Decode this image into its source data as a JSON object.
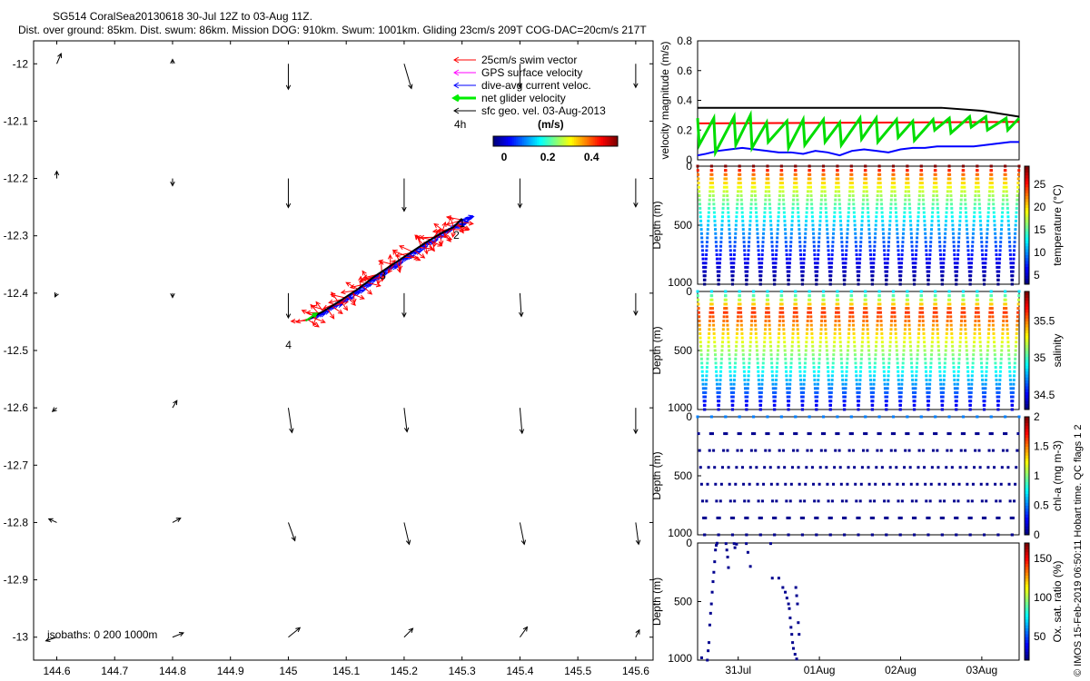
{
  "title_line1": "SG514 CoralSea20130618 30-Jul 12Z to 03-Aug 11Z.",
  "title_line2": "Dist. over ground: 85km. Dist. swum: 86km. Mission DOG: 910km. Swum: 1001km. Gliding 23cm/s 209T COG-DAC=20cm/s 217T",
  "side_credit": "© IMOS 15-Feb-2019 06:50:11 Hobart time. QC flags 1  2",
  "colors": {
    "swim": "#ff0000",
    "gps": "#ff00ff",
    "dac": "#0000ff",
    "net": "#00ee00",
    "sfc": "#000000",
    "jet": [
      "#00008f",
      "#0000ff",
      "#007fff",
      "#00ffff",
      "#7fff7f",
      "#ffff00",
      "#ff7f00",
      "#ff0000",
      "#7f0000"
    ]
  },
  "chart_data": [
    {
      "id": "map",
      "type": "scatter",
      "xlabel": "",
      "ylabel": "",
      "xlim": [
        144.56,
        145.63
      ],
      "ylim": [
        -13.04,
        -11.96
      ],
      "xticks": [
        "144.6",
        "144.7",
        "144.8",
        "144.9",
        "145",
        "145.1",
        "145.2",
        "145.3",
        "145.4",
        "145.5",
        "145.6"
      ],
      "xtick_values": [
        144.6,
        144.7,
        144.8,
        144.9,
        145.0,
        145.1,
        145.2,
        145.3,
        145.4,
        145.5,
        145.6
      ],
      "yticks": [
        "-12",
        "-12.1",
        "-12.2",
        "-12.3",
        "-12.4",
        "-12.5",
        "-12.6",
        "-12.7",
        "-12.8",
        "-12.9",
        "-13"
      ],
      "ytick_values": [
        -12.0,
        -12.1,
        -12.2,
        -12.3,
        -12.4,
        -12.5,
        -12.6,
        -12.7,
        -12.8,
        -12.9,
        -13.0
      ],
      "legend": [
        {
          "label": "25cm/s swim vector",
          "color": "#ff0000",
          "style": "thin"
        },
        {
          "label": "GPS surface velocity",
          "color": "#ff00ff",
          "style": "thin"
        },
        {
          "label": "dive-avg current veloc.",
          "color": "#0000ff",
          "style": "thin"
        },
        {
          "label": "net glider velocity",
          "color": "#00ee00",
          "style": "thick"
        },
        {
          "label": "sfc geo. vel. 03-Aug-2013",
          "color": "#000000",
          "style": "thin"
        }
      ],
      "legend_placement": "top-right",
      "legend_note": "4h",
      "colorbar": {
        "label": "(m/s)",
        "ticks": [
          "0",
          "0.2",
          "0.4"
        ],
        "tick_values": [
          0,
          0.2,
          0.4
        ],
        "range": [
          -0.05,
          0.52
        ]
      },
      "isobaths_label": "isobaths: 0   200  1000m",
      "day_markers": [
        {
          "label": "1",
          "x": 145.295,
          "y": -12.285
        },
        {
          "label": "2",
          "x": 145.285,
          "y": -12.305
        },
        {
          "label": "3",
          "x": 145.158,
          "y": -12.376
        },
        {
          "label": "4",
          "x": 144.995,
          "y": -12.497
        }
      ],
      "track": [
        [
          145.03,
          -12.448
        ],
        [
          145.06,
          -12.432
        ],
        [
          145.09,
          -12.413
        ],
        [
          145.12,
          -12.393
        ],
        [
          145.15,
          -12.37
        ],
        [
          145.18,
          -12.35
        ],
        [
          145.21,
          -12.33
        ],
        [
          145.24,
          -12.31
        ],
        [
          145.265,
          -12.295
        ],
        [
          145.285,
          -12.285
        ],
        [
          145.3,
          -12.27
        ]
      ],
      "geo_vectors": {
        "x": [
          144.6,
          144.8,
          145.0,
          145.2,
          145.4,
          145.6
        ],
        "y": [
          -12.0,
          -12.2,
          -12.4,
          -12.6,
          -12.8,
          -13.0
        ],
        "u": [
          [
            0.012,
            0.0,
            0.0,
            0.02,
            0.0,
            0.0
          ],
          [
            0.0,
            0.0,
            0.0,
            0.0,
            0.0,
            0.0
          ],
          [
            -0.005,
            0.0,
            0.0,
            0.0,
            0.004,
            0.0
          ],
          [
            -0.012,
            0.012,
            0.01,
            0.008,
            0.006,
            0.0
          ],
          [
            -0.022,
            0.022,
            0.018,
            0.014,
            0.012,
            0.008
          ],
          [
            -0.03,
            0.03,
            0.032,
            0.024,
            0.02,
            0.01
          ]
        ],
        "v": [
          [
            0.028,
            0.012,
            -0.07,
            -0.068,
            -0.065,
            -0.065
          ],
          [
            0.02,
            -0.02,
            -0.08,
            -0.09,
            -0.08,
            -0.078
          ],
          [
            -0.01,
            -0.012,
            -0.068,
            -0.065,
            -0.064,
            -0.06
          ],
          [
            -0.01,
            0.02,
            -0.068,
            -0.066,
            -0.07,
            -0.07
          ],
          [
            0.01,
            0.012,
            -0.05,
            -0.06,
            -0.06,
            -0.06
          ],
          [
            -0.01,
            0.012,
            0.026,
            0.024,
            0.028,
            0.02
          ]
        ]
      }
    },
    {
      "id": "velocity",
      "type": "line",
      "ylabel": "velocity magnitude (m/s)",
      "ylim": [
        0,
        0.8
      ],
      "yticks": [
        "0",
        "0.2",
        "0.4",
        "0.6",
        "0.8"
      ],
      "ytick_values": [
        0,
        0.2,
        0.4,
        0.6,
        0.8
      ],
      "xlim": [
        30.5,
        34.46
      ],
      "series": [
        {
          "color": "#000000",
          "x": [
            30.5,
            32.0,
            33.0,
            33.5,
            34.0,
            34.46
          ],
          "y": [
            0.35,
            0.35,
            0.35,
            0.35,
            0.33,
            0.29
          ]
        },
        {
          "color": "#ff0000",
          "x": [
            30.5,
            34.46
          ],
          "y": [
            0.245,
            0.255
          ]
        },
        {
          "color": "#0000ff",
          "x": [
            30.5,
            30.6,
            30.75,
            30.9,
            31.05,
            31.2,
            31.35,
            31.5,
            31.65,
            31.8,
            31.95,
            32.1,
            32.25,
            32.4,
            32.55,
            32.7,
            32.85,
            33.0,
            33.15,
            33.3,
            33.45,
            33.6,
            33.75,
            33.9,
            34.05,
            34.2,
            34.35,
            34.46
          ],
          "y": [
            0.03,
            0.04,
            0.06,
            0.07,
            0.08,
            0.07,
            0.06,
            0.05,
            0.05,
            0.04,
            0.06,
            0.05,
            0.03,
            0.06,
            0.07,
            0.06,
            0.05,
            0.07,
            0.08,
            0.08,
            0.09,
            0.09,
            0.09,
            0.09,
            0.1,
            0.11,
            0.12,
            0.12
          ]
        },
        {
          "color": "#00dd00",
          "kind": "net",
          "x": [
            30.5,
            30.52,
            30.7,
            30.72,
            30.95,
            30.97,
            31.15,
            31.17,
            31.35,
            31.37,
            31.6,
            31.62,
            31.8,
            31.82,
            32.05,
            32.07,
            32.25,
            32.27,
            32.5,
            32.52,
            32.7,
            32.72,
            32.95,
            32.97,
            33.15,
            33.17,
            33.4,
            33.42,
            33.6,
            33.62,
            33.85,
            33.87,
            34.05,
            34.07,
            34.3,
            34.32,
            34.46
          ],
          "y": [
            0.28,
            0.1,
            0.28,
            0.05,
            0.29,
            0.1,
            0.3,
            0.08,
            0.25,
            0.12,
            0.26,
            0.08,
            0.27,
            0.1,
            0.27,
            0.12,
            0.25,
            0.1,
            0.28,
            0.14,
            0.28,
            0.12,
            0.27,
            0.15,
            0.26,
            0.13,
            0.27,
            0.2,
            0.28,
            0.18,
            0.29,
            0.22,
            0.29,
            0.2,
            0.28,
            0.2,
            0.28
          ]
        }
      ]
    },
    {
      "id": "temperature",
      "type": "scatter",
      "ylabel": "Depth (m)",
      "clabel": "temperature (°C)",
      "yticks": [
        "0",
        "500",
        "1000"
      ],
      "ytick_values": [
        0,
        500,
        1000
      ],
      "ylim": [
        0,
        1000
      ],
      "cticks": [
        "5",
        "10",
        "15",
        "20",
        "25"
      ],
      "ctick_values": [
        5,
        10,
        15,
        20,
        25
      ],
      "clim": [
        3,
        29
      ],
      "xlim": [
        30.5,
        34.46
      ],
      "dives": 23
    },
    {
      "id": "salinity",
      "type": "scatter",
      "ylabel": "Depth (m)",
      "clabel": "salinity",
      "yticks": [
        "0",
        "500",
        "1000"
      ],
      "ytick_values": [
        0,
        500,
        1000
      ],
      "ylim": [
        0,
        1000
      ],
      "cticks": [
        "34.5",
        "35",
        "35.5"
      ],
      "ctick_values": [
        34.5,
        35,
        35.5
      ],
      "clim": [
        34.3,
        35.9
      ],
      "xlim": [
        30.5,
        34.46
      ],
      "dives": 23
    },
    {
      "id": "chla",
      "type": "scatter",
      "ylabel": "Depth (m)",
      "clabel": "chl-a (mg m-3)",
      "yticks": [
        "0",
        "500",
        "1000"
      ],
      "ytick_values": [
        0,
        500,
        1000
      ],
      "ylim": [
        0,
        1000
      ],
      "cticks": [
        "0",
        "0.5",
        "1",
        "1.5",
        "2"
      ],
      "ctick_values": [
        0,
        0.5,
        1,
        1.5,
        2
      ],
      "clim": [
        0,
        2
      ],
      "xlim": [
        30.5,
        34.46
      ],
      "dives": 23
    },
    {
      "id": "oxsat",
      "type": "scatter",
      "ylabel": "Depth (m)",
      "clabel": "Ox. sat. ratio (%)",
      "yticks": [
        "0",
        "500",
        "1000"
      ],
      "ytick_values": [
        0,
        500,
        1000
      ],
      "ylim": [
        0,
        1000
      ],
      "cticks": [
        "50",
        "100",
        "150"
      ],
      "ctick_values": [
        50,
        100,
        150
      ],
      "clim": [
        20,
        170
      ],
      "xlim": [
        30.5,
        34.46
      ],
      "xticks": [
        "31Jul",
        "01Aug",
        "02Aug",
        "03Aug"
      ],
      "xtick_values": [
        31,
        32,
        33,
        34
      ],
      "points": [
        [
          30.55,
          980
        ],
        [
          30.62,
          1000
        ],
        [
          30.63,
          920
        ],
        [
          30.64,
          850
        ],
        [
          30.65,
          700
        ],
        [
          30.66,
          600
        ],
        [
          30.67,
          520
        ],
        [
          30.68,
          420
        ],
        [
          30.69,
          330
        ],
        [
          30.7,
          250
        ],
        [
          30.71,
          160
        ],
        [
          30.72,
          60
        ],
        [
          30.73,
          20
        ],
        [
          30.74,
          2
        ],
        [
          30.85,
          5
        ],
        [
          30.86,
          60
        ],
        [
          30.87,
          120
        ],
        [
          30.88,
          210
        ],
        [
          30.95,
          5
        ],
        [
          30.96,
          40
        ],
        [
          30.98,
          10
        ],
        [
          31.1,
          5
        ],
        [
          31.12,
          80
        ],
        [
          31.15,
          200
        ],
        [
          31.4,
          5
        ],
        [
          31.42,
          300
        ],
        [
          31.5,
          300
        ],
        [
          31.55,
          380
        ],
        [
          31.58,
          420
        ],
        [
          31.6,
          470
        ],
        [
          31.62,
          520
        ],
        [
          31.63,
          560
        ],
        [
          31.64,
          640
        ],
        [
          31.65,
          720
        ],
        [
          31.66,
          780
        ],
        [
          31.67,
          850
        ],
        [
          31.68,
          900
        ],
        [
          31.7,
          950
        ],
        [
          31.72,
          990
        ],
        [
          31.71,
          380
        ],
        [
          31.72,
          450
        ],
        [
          31.73,
          520
        ],
        [
          31.74,
          680
        ],
        [
          31.75,
          780
        ]
      ]
    }
  ]
}
